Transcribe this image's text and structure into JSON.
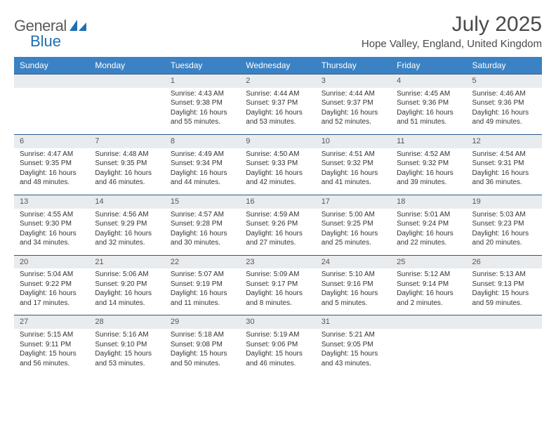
{
  "brand": {
    "name_part1": "General",
    "name_part2": "Blue"
  },
  "title": "July 2025",
  "location": "Hope Valley, England, United Kingdom",
  "colors": {
    "header_bg": "#3b82c4",
    "header_text": "#ffffff",
    "daynum_bg": "#e9ecef",
    "daynum_border": "#2c5a8a",
    "body_text": "#333333",
    "title_text": "#4a4a4a",
    "logo_gray": "#5a5a5a",
    "logo_blue": "#1f6fb2"
  },
  "weekdays": [
    "Sunday",
    "Monday",
    "Tuesday",
    "Wednesday",
    "Thursday",
    "Friday",
    "Saturday"
  ],
  "weeks": [
    {
      "nums": [
        "",
        "",
        "1",
        "2",
        "3",
        "4",
        "5"
      ],
      "cells": [
        null,
        null,
        {
          "sunrise": "4:43 AM",
          "sunset": "9:38 PM",
          "daylight": "16 hours and 55 minutes."
        },
        {
          "sunrise": "4:44 AM",
          "sunset": "9:37 PM",
          "daylight": "16 hours and 53 minutes."
        },
        {
          "sunrise": "4:44 AM",
          "sunset": "9:37 PM",
          "daylight": "16 hours and 52 minutes."
        },
        {
          "sunrise": "4:45 AM",
          "sunset": "9:36 PM",
          "daylight": "16 hours and 51 minutes."
        },
        {
          "sunrise": "4:46 AM",
          "sunset": "9:36 PM",
          "daylight": "16 hours and 49 minutes."
        }
      ]
    },
    {
      "nums": [
        "6",
        "7",
        "8",
        "9",
        "10",
        "11",
        "12"
      ],
      "cells": [
        {
          "sunrise": "4:47 AM",
          "sunset": "9:35 PM",
          "daylight": "16 hours and 48 minutes."
        },
        {
          "sunrise": "4:48 AM",
          "sunset": "9:35 PM",
          "daylight": "16 hours and 46 minutes."
        },
        {
          "sunrise": "4:49 AM",
          "sunset": "9:34 PM",
          "daylight": "16 hours and 44 minutes."
        },
        {
          "sunrise": "4:50 AM",
          "sunset": "9:33 PM",
          "daylight": "16 hours and 42 minutes."
        },
        {
          "sunrise": "4:51 AM",
          "sunset": "9:32 PM",
          "daylight": "16 hours and 41 minutes."
        },
        {
          "sunrise": "4:52 AM",
          "sunset": "9:32 PM",
          "daylight": "16 hours and 39 minutes."
        },
        {
          "sunrise": "4:54 AM",
          "sunset": "9:31 PM",
          "daylight": "16 hours and 36 minutes."
        }
      ]
    },
    {
      "nums": [
        "13",
        "14",
        "15",
        "16",
        "17",
        "18",
        "19"
      ],
      "cells": [
        {
          "sunrise": "4:55 AM",
          "sunset": "9:30 PM",
          "daylight": "16 hours and 34 minutes."
        },
        {
          "sunrise": "4:56 AM",
          "sunset": "9:29 PM",
          "daylight": "16 hours and 32 minutes."
        },
        {
          "sunrise": "4:57 AM",
          "sunset": "9:28 PM",
          "daylight": "16 hours and 30 minutes."
        },
        {
          "sunrise": "4:59 AM",
          "sunset": "9:26 PM",
          "daylight": "16 hours and 27 minutes."
        },
        {
          "sunrise": "5:00 AM",
          "sunset": "9:25 PM",
          "daylight": "16 hours and 25 minutes."
        },
        {
          "sunrise": "5:01 AM",
          "sunset": "9:24 PM",
          "daylight": "16 hours and 22 minutes."
        },
        {
          "sunrise": "5:03 AM",
          "sunset": "9:23 PM",
          "daylight": "16 hours and 20 minutes."
        }
      ]
    },
    {
      "nums": [
        "20",
        "21",
        "22",
        "23",
        "24",
        "25",
        "26"
      ],
      "cells": [
        {
          "sunrise": "5:04 AM",
          "sunset": "9:22 PM",
          "daylight": "16 hours and 17 minutes."
        },
        {
          "sunrise": "5:06 AM",
          "sunset": "9:20 PM",
          "daylight": "16 hours and 14 minutes."
        },
        {
          "sunrise": "5:07 AM",
          "sunset": "9:19 PM",
          "daylight": "16 hours and 11 minutes."
        },
        {
          "sunrise": "5:09 AM",
          "sunset": "9:17 PM",
          "daylight": "16 hours and 8 minutes."
        },
        {
          "sunrise": "5:10 AM",
          "sunset": "9:16 PM",
          "daylight": "16 hours and 5 minutes."
        },
        {
          "sunrise": "5:12 AM",
          "sunset": "9:14 PM",
          "daylight": "16 hours and 2 minutes."
        },
        {
          "sunrise": "5:13 AM",
          "sunset": "9:13 PM",
          "daylight": "15 hours and 59 minutes."
        }
      ]
    },
    {
      "nums": [
        "27",
        "28",
        "29",
        "30",
        "31",
        "",
        ""
      ],
      "cells": [
        {
          "sunrise": "5:15 AM",
          "sunset": "9:11 PM",
          "daylight": "15 hours and 56 minutes."
        },
        {
          "sunrise": "5:16 AM",
          "sunset": "9:10 PM",
          "daylight": "15 hours and 53 minutes."
        },
        {
          "sunrise": "5:18 AM",
          "sunset": "9:08 PM",
          "daylight": "15 hours and 50 minutes."
        },
        {
          "sunrise": "5:19 AM",
          "sunset": "9:06 PM",
          "daylight": "15 hours and 46 minutes."
        },
        {
          "sunrise": "5:21 AM",
          "sunset": "9:05 PM",
          "daylight": "15 hours and 43 minutes."
        },
        null,
        null
      ]
    }
  ],
  "labels": {
    "sunrise": "Sunrise:",
    "sunset": "Sunset:",
    "daylight": "Daylight:"
  }
}
